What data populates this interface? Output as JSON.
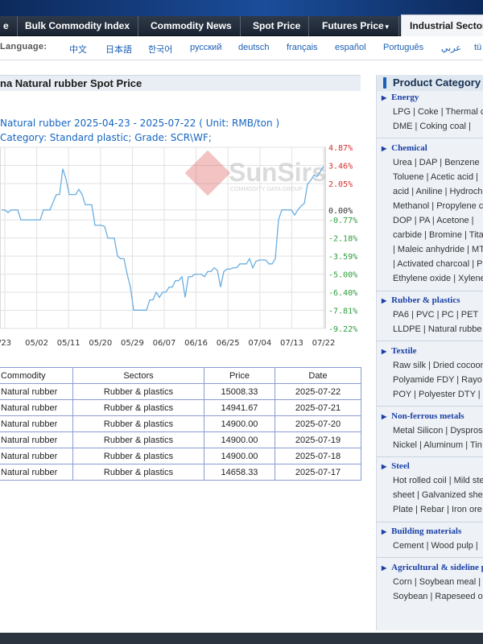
{
  "nav": {
    "items": [
      {
        "label": "e"
      },
      {
        "label": "Bulk Commodity Index"
      },
      {
        "label": "Commodity News"
      },
      {
        "label": "Spot Price"
      },
      {
        "label": "Futures Price",
        "caret": "▼"
      },
      {
        "label": "Industrial Sectors"
      }
    ]
  },
  "language": {
    "label": "Language:",
    "options": [
      "中文",
      "日本語",
      "한국어",
      "русский",
      "deutsch",
      "français",
      "español",
      "Português",
      "عربي",
      "tü"
    ]
  },
  "page": {
    "title": "na Natural rubber Spot Price",
    "range_line": "Natural rubber 2025-04-23 - 2025-07-22   ( Unit: RMB/ton )",
    "category_line": "Category: Standard plastic; Grade: SCR\\WF;"
  },
  "chart_data": {
    "type": "line",
    "watermark": "SunSirs",
    "watermark_sub": "COMMODITY DATA GROUP",
    "x_ticks": [
      "/23",
      "05/02",
      "05/11",
      "05/20",
      "05/29",
      "06/07",
      "06/16",
      "06/25",
      "07/04",
      "07/13",
      "07/22"
    ],
    "y_ticks_right": [
      {
        "label": "4.87%",
        "value": 4.87,
        "color": "#d32f2f"
      },
      {
        "label": "3.46%",
        "value": 3.46,
        "color": "#d32f2f"
      },
      {
        "label": "2.05%",
        "value": 2.05,
        "color": "#d32f2f"
      },
      {
        "label": "0.00%",
        "value": 0.0,
        "color": "#333333"
      },
      {
        "label": "-0.77%",
        "value": -0.77,
        "color": "#2e9c3c"
      },
      {
        "label": "-2.18%",
        "value": -2.18,
        "color": "#2e9c3c"
      },
      {
        "label": "-3.59%",
        "value": -3.59,
        "color": "#2e9c3c"
      },
      {
        "label": "-5.00%",
        "value": -5.0,
        "color": "#2e9c3c"
      },
      {
        "label": "-6.40%",
        "value": -6.4,
        "color": "#2e9c3c"
      },
      {
        "label": "-7.81%",
        "value": -7.81,
        "color": "#2e9c3c"
      },
      {
        "label": "-9.22%",
        "value": -9.22,
        "color": "#2e9c3c"
      }
    ],
    "ylim": [
      -9.22,
      4.87
    ],
    "series": [
      {
        "color": "#6aaee0",
        "values": [
          0.0,
          0.0,
          -0.2,
          0.0,
          0.0,
          0.0,
          -0.77,
          -0.77,
          -0.77,
          -0.77,
          -0.77,
          -0.77,
          -0.77,
          0.0,
          0.0,
          0.0,
          0.6,
          1.2,
          1.2,
          3.2,
          2.4,
          1.2,
          1.2,
          1.2,
          1.6,
          1.2,
          0.4,
          0.4,
          0.4,
          -1.2,
          -1.2,
          -1.2,
          -1.3,
          -2.2,
          -2.2,
          -2.2,
          -3.6,
          -3.8,
          -3.8,
          -5.0,
          -6.0,
          -7.8,
          -7.8,
          -7.8,
          -7.8,
          -7.8,
          -7.0,
          -7.0,
          -6.4,
          -6.8,
          -6.4,
          -6.4,
          -6.0,
          -6.0,
          -5.5,
          -5.5,
          -5.2,
          -6.8,
          -5.2,
          -5.2,
          -5.0,
          -5.0,
          -5.0,
          -5.2,
          -4.8,
          -4.8,
          -4.5,
          -4.7,
          -6.0,
          -4.8,
          -4.6,
          -4.6,
          -4.5,
          -4.5,
          -4.2,
          -4.2,
          -4.2,
          -3.8,
          -4.5,
          -4.0,
          -3.9,
          -3.9,
          -3.9,
          -4.2,
          -4.2,
          -3.8,
          -0.77,
          0.0,
          0.0,
          0.0,
          0.0,
          -0.4,
          0.0,
          0.3,
          0.5,
          2.0,
          2.3,
          2.7,
          2.6,
          3.0,
          3.4
        ]
      }
    ]
  },
  "table": {
    "headers": [
      "Commodity",
      "Sectors",
      "Price",
      "Date"
    ],
    "rows": [
      [
        "Natural rubber",
        "Rubber & plastics",
        "15008.33",
        "2025-07-22"
      ],
      [
        "Natural rubber",
        "Rubber & plastics",
        "14941.67",
        "2025-07-21"
      ],
      [
        "Natural rubber",
        "Rubber & plastics",
        "14900.00",
        "2025-07-20"
      ],
      [
        "Natural rubber",
        "Rubber & plastics",
        "14900.00",
        "2025-07-19"
      ],
      [
        "Natural rubber",
        "Rubber & plastics",
        "14900.00",
        "2025-07-18"
      ],
      [
        "Natural rubber",
        "Rubber & plastics",
        "14658.33",
        "2025-07-17"
      ]
    ]
  },
  "sidebar": {
    "title": "Product Category",
    "categories": [
      {
        "title": "Energy",
        "lines": [
          "LPG | Coke | Thermal c",
          "DME | Coking coal |"
        ]
      },
      {
        "title": "Chemical",
        "lines": [
          "Urea | DAP | Benzene",
          "Toluene | Acetic acid |",
          "acid | Aniline | Hydroch",
          "Methanol | Propylene c",
          "DOP | PA | Acetone |",
          "carbide | Bromine | Tita",
          "| Maleic anhydride | MT",
          "| Activated charcoal | P",
          "Ethylene oxide | Xylene"
        ]
      },
      {
        "title": "Rubber & plastics",
        "lines": [
          "PA6 | PVC | PC | PET",
          "LLDPE | Natural rubbe"
        ]
      },
      {
        "title": "Textile",
        "lines": [
          "Raw silk | Dried cocoon",
          "Polyamide FDY | Rayo",
          "POY | Polyester DTY |"
        ]
      },
      {
        "title": "Non-ferrous metals",
        "lines": [
          "Metal Silicon | Dysprosi",
          "Nickel | Aluminum | Tin"
        ]
      },
      {
        "title": "Steel",
        "lines": [
          "Hot rolled coil | Mild ste",
          "sheet | Galvanized shee",
          "Plate | Rebar | Iron ore"
        ]
      },
      {
        "title": "Building materials",
        "lines": [
          "Cement | Wood pulp |"
        ]
      },
      {
        "title": "Agricultural & sideline products",
        "lines": [
          "Corn | Soybean meal |",
          "Soybean | Rapeseed o"
        ]
      }
    ]
  }
}
